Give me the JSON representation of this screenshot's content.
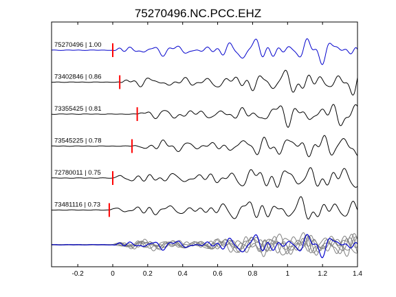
{
  "chart_data": {
    "type": "line",
    "title": "75270496.NC.PCC.EHZ",
    "xlabel": "",
    "ylabel": "",
    "xlim": [
      -0.35,
      1.4
    ],
    "xticks": [
      -0.2,
      0,
      0.2,
      0.4,
      0.6,
      0.8,
      1,
      1.2,
      1.4
    ],
    "xtick_labels": [
      "-0.2",
      "0",
      "0.2",
      "0.4",
      "0.6",
      "0.8",
      "1",
      "1.2",
      "1.4"
    ],
    "grid": false,
    "legend": "none",
    "colors": {
      "reference": "#0000cc",
      "trace": "#000000",
      "overlay": "#808080",
      "pick": "#ff0000",
      "frame": "#000000"
    },
    "traces": [
      {
        "label": "75270496 | 1.00",
        "pick_time": 0.0,
        "reference": true
      },
      {
        "label": "73402846 | 0.86",
        "pick_time": 0.04,
        "reference": false
      },
      {
        "label": "73355425 | 0.81",
        "pick_time": 0.14,
        "reference": false
      },
      {
        "label": "73545225 | 0.78",
        "pick_time": 0.11,
        "reference": false
      },
      {
        "label": "72780011 | 0.75",
        "pick_time": 0.0,
        "reference": false
      },
      {
        "label": "73481116 | 0.73",
        "pick_time": -0.02,
        "reference": false
      }
    ],
    "stack_panel": {
      "overlay_count": 6
    }
  }
}
